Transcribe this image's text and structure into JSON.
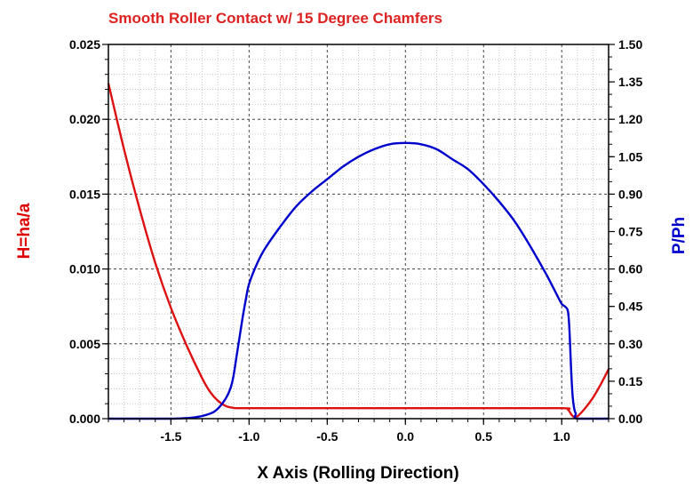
{
  "chart_data": {
    "type": "line",
    "title": "Smooth Roller Contact w/ 15 Degree Chamfers",
    "xlabel": "X Axis (Rolling Direction)",
    "ylabel_left": "H=ha/a",
    "ylabel_right": "P/Ph",
    "xlim": [
      -1.9,
      1.3
    ],
    "ylim_left": [
      0,
      0.025
    ],
    "ylim_right": [
      0,
      1.5
    ],
    "x_ticks": [
      "-1.5",
      "-1.0",
      "-0.5",
      "0.0",
      "0.5",
      "1.0"
    ],
    "x_tick_values": [
      -1.5,
      -1.0,
      -0.5,
      0.0,
      0.5,
      1.0
    ],
    "y_left_ticks": [
      "0.000",
      "0.005",
      "0.010",
      "0.015",
      "0.020",
      "0.025"
    ],
    "y_left_tick_values": [
      0,
      0.005,
      0.01,
      0.015,
      0.02,
      0.025
    ],
    "y_right_ticks": [
      "0.00",
      "0.15",
      "0.30",
      "0.45",
      "0.60",
      "0.75",
      "0.90",
      "1.05",
      "1.20",
      "1.35",
      "1.50"
    ],
    "y_right_tick_values": [
      0,
      0.15,
      0.3,
      0.45,
      0.6,
      0.75,
      0.9,
      1.05,
      1.2,
      1.35,
      1.5
    ],
    "grid": true,
    "colors": {
      "film_thickness": "#dd1111",
      "pressure": "#0000cc",
      "title": "#dd2222",
      "left_axis_title": "#dd0000",
      "right_axis_title": "#0000cc",
      "grid": "#999999"
    },
    "series": [
      {
        "axis": "left",
        "color": "#dd1111",
        "x": [
          -1.9,
          -1.8,
          -1.7,
          -1.6,
          -1.5,
          -1.4,
          -1.3,
          -1.25,
          -1.2,
          -1.15,
          -1.1,
          -1.05,
          -1.0,
          -0.5,
          0.0,
          0.5,
          1.0,
          1.04,
          1.06,
          1.08,
          1.1,
          1.15,
          1.2,
          1.25,
          1.3
        ],
        "values": [
          0.0224,
          0.018,
          0.014,
          0.0104,
          0.0074,
          0.0049,
          0.0027,
          0.0018,
          0.0012,
          0.00085,
          0.00072,
          0.0007,
          0.0007,
          0.0007,
          0.0007,
          0.0007,
          0.0007,
          0.0006,
          0.0003,
          0.0001,
          0.00015,
          0.0007,
          0.0014,
          0.0023,
          0.0033
        ]
      },
      {
        "axis": "right",
        "color": "#0000cc",
        "x": [
          -1.9,
          -1.5,
          -1.35,
          -1.25,
          -1.2,
          -1.15,
          -1.12,
          -1.1,
          -1.08,
          -1.06,
          -1.04,
          -1.02,
          -1.0,
          -0.95,
          -0.9,
          -0.8,
          -0.7,
          -0.6,
          -0.5,
          -0.4,
          -0.3,
          -0.2,
          -0.1,
          0.0,
          0.1,
          0.2,
          0.3,
          0.4,
          0.5,
          0.6,
          0.7,
          0.8,
          0.9,
          0.95,
          1.0,
          1.02,
          1.04,
          1.05,
          1.06,
          1.07,
          1.08,
          1.09,
          1.1,
          1.3
        ],
        "values": [
          0.0,
          0.0,
          0.005,
          0.02,
          0.04,
          0.08,
          0.12,
          0.17,
          0.25,
          0.33,
          0.41,
          0.48,
          0.54,
          0.62,
          0.68,
          0.77,
          0.85,
          0.91,
          0.96,
          1.01,
          1.05,
          1.08,
          1.1,
          1.105,
          1.1,
          1.08,
          1.04,
          1.0,
          0.94,
          0.87,
          0.79,
          0.69,
          0.58,
          0.52,
          0.46,
          0.45,
          0.43,
          0.35,
          0.2,
          0.09,
          0.04,
          0.02,
          0.0,
          0.0
        ]
      }
    ]
  }
}
